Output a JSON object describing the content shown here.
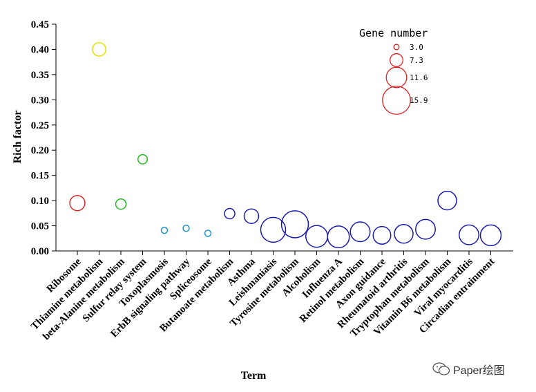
{
  "chart_data": {
    "type": "scatter",
    "xlabel": "Term",
    "ylabel": "Rich factor",
    "ylim": [
      0,
      0.45
    ],
    "yticks": [
      "0.00",
      "0.05",
      "0.10",
      "0.15",
      "0.20",
      "0.25",
      "0.30",
      "0.35",
      "0.40",
      "0.45"
    ],
    "categories": [
      "Ribosome",
      "Thiamine metabolism",
      "beta-Alanine metabolism",
      "Sulfur relay system",
      "Toxoplasmosis",
      "ErbB signaling pathway",
      "Spliceosome",
      "Butanoate metabolism",
      "Asthma",
      "Leishmaniasis",
      "Tyrosine metabolism",
      "Alcoholism",
      "Influenza A",
      "Retinol metabolism",
      "Axon guidance",
      "Rheumatoid arthritis",
      "Tryptophan metabolism",
      "Vitamin B6 metabolism",
      "Viral myocarditis",
      "Circadian entrainment"
    ],
    "rich_factor": [
      0.095,
      0.4,
      0.093,
      0.182,
      0.041,
      0.045,
      0.035,
      0.074,
      0.069,
      0.042,
      0.053,
      0.029,
      0.028,
      0.038,
      0.031,
      0.034,
      0.043,
      0.1,
      0.032,
      0.031
    ],
    "gene_number": [
      7.3,
      6.5,
      5.0,
      4.5,
      3.0,
      3.0,
      3.0,
      5.0,
      7.0,
      12.0,
      13.0,
      10.5,
      10.5,
      9.5,
      8.5,
      9.0,
      9.5,
      9.0,
      9.5,
      10.0
    ],
    "colors": [
      "#d62728",
      "#e8e000",
      "#22bb22",
      "#22bb22",
      "#1e90cc",
      "#1e90cc",
      "#1e90cc",
      "#1a1aaa",
      "#1a1aaa",
      "#1a1aaa",
      "#1a1aaa",
      "#1a1aaa",
      "#1a1aaa",
      "#1a1aaa",
      "#1a1aaa",
      "#1a1aaa",
      "#1a1aaa",
      "#1a1aaa",
      "#1a1aaa",
      "#1a1aaa"
    ],
    "legend": {
      "title": "Gene number",
      "entries": [
        {
          "label": "3.0",
          "value": 3.0
        },
        {
          "label": "7.3",
          "value": 7.3
        },
        {
          "label": "11.6",
          "value": 11.6
        },
        {
          "label": "15.9",
          "value": 15.9
        }
      ],
      "color": "#e02020",
      "placement": "top-right"
    }
  },
  "watermark": {
    "text": "Paper绘图",
    "icon": "wechat-icon"
  }
}
